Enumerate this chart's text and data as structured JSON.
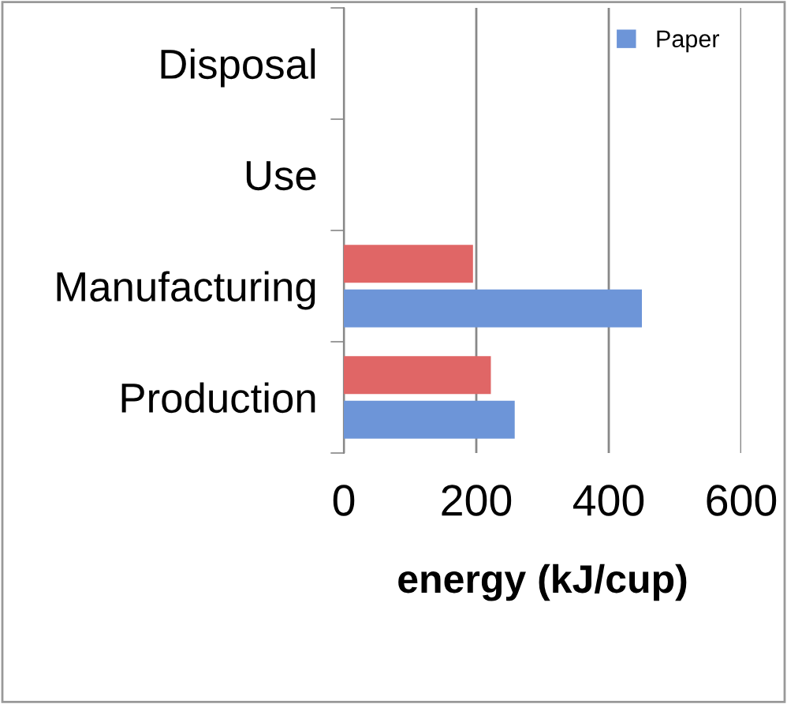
{
  "chart_data": {
    "type": "bar",
    "orientation": "horizontal",
    "xlabel": "energy (kJ/cup)",
    "categories": [
      "Disposal",
      "Use",
      "Manufacturing",
      "Production"
    ],
    "series": [
      {
        "color": "#e06666",
        "values": [
          null,
          null,
          195,
          222
        ]
      },
      {
        "name": "Paper",
        "color": "#6d95d8",
        "values": [
          null,
          null,
          450,
          258
        ]
      }
    ],
    "xlim": [
      0,
      600
    ],
    "xticks": [
      0,
      200,
      400,
      600
    ],
    "grid": "x",
    "legend": "top right"
  }
}
